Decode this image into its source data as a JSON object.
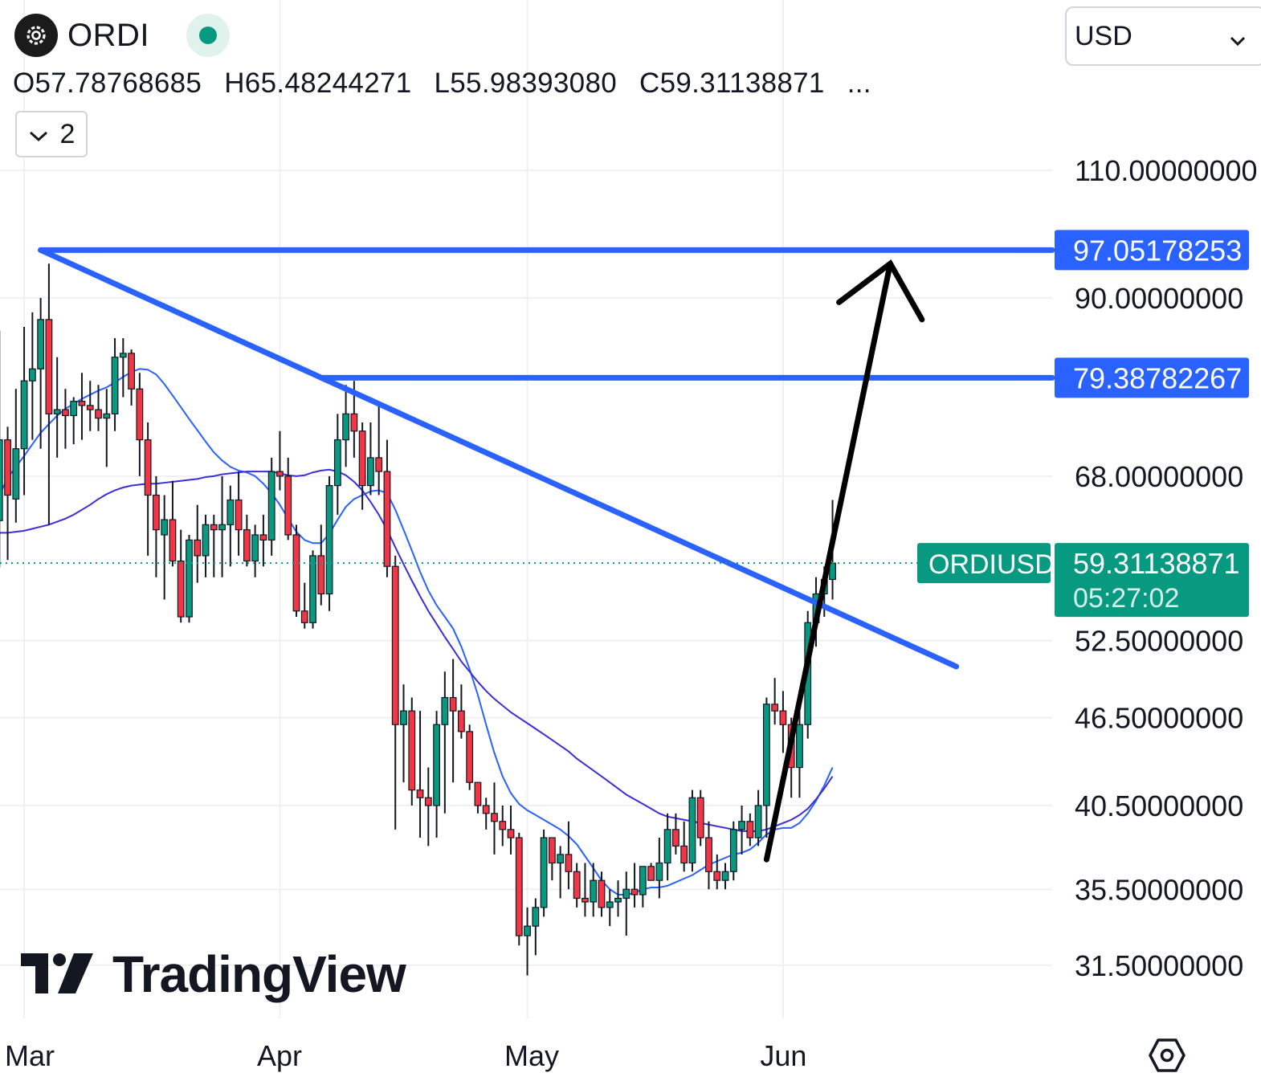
{
  "symbol": {
    "name": "ORDI",
    "logo_icon": "ordi-logo-icon",
    "status_icon": "market-open-dot"
  },
  "ohlc": {
    "open": "O57.78768685",
    "high": "H65.48244271",
    "low": "L55.98393080",
    "close": "C59.31138871",
    "more": "..."
  },
  "indicators_toggle": {
    "label": "2"
  },
  "currency": {
    "selected": "USD"
  },
  "watermark": {
    "text": "TradingView"
  },
  "colors": {
    "up": "#089981",
    "down": "#f23645",
    "trendline": "#2962ff",
    "ma_fast": "#2962ff",
    "ma_slow": "#3a2ed8",
    "price_line": "#089981",
    "arrow": "#000000"
  },
  "chart_data": {
    "type": "candlestick",
    "title": "ORDI",
    "xlabel": "",
    "ylabel": "",
    "y_scale": "log",
    "ylim": [
      30.4,
      119
    ],
    "x_ticks": [
      {
        "label": "Mar",
        "index": 4
      },
      {
        "label": "Apr",
        "index": 35
      },
      {
        "label": "May",
        "index": 65
      },
      {
        "label": "Jun",
        "index": 96
      }
    ],
    "y_ticks": [
      "110.00000000",
      "90.00000000",
      "68.00000000",
      "52.50000000",
      "46.50000000",
      "40.50000000",
      "35.50000000",
      "31.50000000"
    ],
    "candles": [
      [
        62.0,
        70.0,
        57.4,
        63.6
      ],
      [
        63.4,
        85.5,
        58.9,
        72.0
      ],
      [
        72.0,
        73.5,
        59.6,
        66.0
      ],
      [
        65.6,
        78.0,
        63.2,
        71.0
      ],
      [
        71.0,
        86.0,
        66.0,
        79.0
      ],
      [
        79.0,
        88.0,
        72.0,
        80.5
      ],
      [
        80.5,
        90.0,
        71.0,
        87.0
      ],
      [
        87.0,
        95.0,
        63.0,
        75.0
      ],
      [
        75.0,
        82.0,
        70.0,
        75.5
      ],
      [
        75.5,
        78.0,
        71.0,
        74.8
      ],
      [
        74.8,
        77.0,
        71.5,
        76.5
      ],
      [
        76.5,
        80.0,
        72.0,
        76.0
      ],
      [
        76.0,
        79.0,
        73.0,
        75.5
      ],
      [
        75.5,
        78.5,
        73.0,
        74.5
      ],
      [
        74.5,
        78.0,
        69.0,
        75.0
      ],
      [
        75.0,
        84.5,
        73.0,
        82.0
      ],
      [
        82.0,
        84.5,
        77.0,
        82.5
      ],
      [
        82.5,
        83.0,
        76.0,
        78.0
      ],
      [
        78.0,
        80.0,
        68.0,
        72.0
      ],
      [
        72.0,
        74.0,
        60.0,
        66.0
      ],
      [
        66.0,
        68.0,
        58.0,
        62.5
      ],
      [
        62.0,
        66.0,
        56.0,
        63.5
      ],
      [
        63.5,
        67.5,
        59.0,
        59.5
      ],
      [
        59.5,
        62.5,
        54.0,
        54.5
      ],
      [
        54.5,
        62.0,
        54.0,
        61.5
      ],
      [
        61.5,
        65.0,
        57.5,
        60.0
      ],
      [
        60.0,
        64.0,
        58.0,
        63.0
      ],
      [
        63.0,
        64.0,
        58.0,
        62.5
      ],
      [
        62.5,
        68.0,
        58.0,
        63.0
      ],
      [
        63.0,
        67.0,
        59.0,
        65.5
      ],
      [
        65.5,
        68.5,
        60.0,
        62.5
      ],
      [
        62.5,
        64.0,
        59.0,
        59.5
      ],
      [
        59.5,
        63.0,
        58.0,
        62.0
      ],
      [
        62.0,
        64.0,
        59.0,
        61.5
      ],
      [
        61.5,
        70.0,
        60.0,
        68.5
      ],
      [
        68.5,
        73.0,
        66.5,
        68.0
      ],
      [
        68.0,
        70.0,
        61.5,
        62.0
      ],
      [
        62.0,
        63.0,
        54.5,
        55.0
      ],
      [
        55.0,
        57.5,
        53.5,
        54.0
      ],
      [
        54.0,
        60.5,
        53.5,
        60.0
      ],
      [
        60.0,
        63.0,
        55.5,
        56.5
      ],
      [
        56.5,
        68.0,
        55.0,
        67.0
      ],
      [
        67.0,
        75.0,
        64.0,
        72.0
      ],
      [
        72.0,
        78.5,
        69.0,
        75.0
      ],
      [
        75.0,
        79.0,
        70.0,
        73.0
      ],
      [
        73.0,
        74.0,
        64.5,
        67.0
      ],
      [
        67.0,
        74.0,
        66.0,
        70.0
      ],
      [
        70.0,
        76.5,
        66.0,
        68.5
      ],
      [
        68.5,
        72.0,
        58.0,
        59.0
      ],
      [
        59.0,
        60.0,
        39.0,
        46.0
      ],
      [
        46.0,
        49.0,
        42.0,
        47.0
      ],
      [
        47.0,
        48.0,
        40.5,
        41.5
      ],
      [
        41.5,
        47.0,
        38.5,
        41.0
      ],
      [
        41.0,
        43.0,
        38.0,
        40.5
      ],
      [
        40.5,
        47.0,
        38.5,
        46.0
      ],
      [
        46.0,
        50.0,
        40.0,
        48.0
      ],
      [
        48.0,
        51.0,
        42.0,
        47.0
      ],
      [
        47.0,
        49.0,
        45.0,
        45.5
      ],
      [
        45.5,
        46.0,
        41.5,
        42.0
      ],
      [
        42.0,
        42.0,
        40.0,
        40.5
      ],
      [
        40.5,
        41.0,
        39.0,
        40.0
      ],
      [
        40.0,
        42.0,
        37.5,
        39.5
      ],
      [
        39.5,
        40.5,
        38.0,
        39.0
      ],
      [
        39.0,
        40.5,
        37.5,
        38.5
      ],
      [
        38.5,
        38.8,
        32.5,
        33.0
      ],
      [
        33.0,
        34.5,
        31.0,
        33.5
      ],
      [
        33.5,
        35.0,
        32.0,
        34.5
      ],
      [
        34.5,
        39.0,
        34.0,
        38.5
      ],
      [
        38.5,
        38.5,
        36.0,
        37.0
      ],
      [
        37.0,
        38.0,
        35.0,
        37.5
      ],
      [
        37.5,
        39.5,
        35.5,
        36.5
      ],
      [
        36.5,
        37.0,
        34.5,
        35.0
      ],
      [
        35.0,
        37.0,
        34.0,
        34.8
      ],
      [
        34.8,
        37.0,
        34.0,
        36.0
      ],
      [
        36.0,
        36.5,
        34.0,
        34.5
      ],
      [
        34.5,
        35.5,
        33.5,
        34.8
      ],
      [
        34.8,
        36.0,
        34.0,
        35.0
      ],
      [
        35.0,
        36.5,
        33.0,
        35.5
      ],
      [
        35.5,
        37.0,
        34.5,
        35.2
      ],
      [
        35.2,
        36.8,
        34.5,
        36.8
      ],
      [
        36.8,
        37.0,
        36.0,
        36.0
      ],
      [
        36.0,
        38.5,
        35.0,
        37.0
      ],
      [
        37.0,
        40.0,
        36.0,
        39.0
      ],
      [
        39.0,
        40.0,
        37.5,
        38.0
      ],
      [
        38.0,
        39.5,
        36.5,
        37.0
      ],
      [
        37.0,
        41.5,
        36.5,
        41.0
      ],
      [
        41.0,
        41.5,
        38.0,
        38.5
      ],
      [
        38.5,
        39.5,
        35.5,
        36.5
      ],
      [
        36.5,
        37.5,
        35.5,
        36.0
      ],
      [
        36.0,
        37.0,
        35.5,
        36.5
      ],
      [
        36.5,
        39.5,
        36.0,
        39.0
      ],
      [
        39.0,
        40.5,
        37.5,
        39.5
      ],
      [
        39.5,
        40.0,
        38.0,
        38.5
      ],
      [
        38.5,
        41.5,
        38.0,
        40.5
      ],
      [
        40.5,
        48.0,
        38.5,
        47.5
      ],
      [
        47.5,
        49.5,
        46.0,
        47.0
      ],
      [
        47.0,
        48.5,
        44.0,
        46.0
      ],
      [
        46.0,
        46.5,
        41.0,
        43.0
      ],
      [
        43.0,
        47.0,
        41.0,
        46.0
      ],
      [
        46.0,
        55.0,
        45.0,
        54.0
      ],
      [
        54.0,
        58.0,
        52.0,
        56.5
      ],
      [
        56.5,
        59.0,
        54.5,
        57.8
      ],
      [
        57.8,
        65.5,
        56.0,
        59.3
      ]
    ],
    "series": [
      {
        "values": [
          64.5,
          66.0,
          67.8,
          69.0,
          70.2,
          71.5,
          72.8,
          73.8,
          74.8,
          75.6,
          76.2,
          76.8,
          77.3,
          77.8,
          78.2,
          78.8,
          79.5,
          80.1,
          80.5,
          80.4,
          79.8,
          78.6,
          77.2,
          75.8,
          74.4,
          73.1,
          71.8,
          70.6,
          69.7,
          69.0,
          68.6,
          68.4,
          68.0,
          67.2,
          66.2,
          65.0,
          63.6,
          62.3,
          61.5,
          61.2,
          61.2,
          62.1,
          63.5,
          64.8,
          65.6,
          66.0,
          66.4,
          66.5,
          66.2,
          64.5,
          62.5,
          60.5,
          58.5,
          56.8,
          55.5,
          54.5,
          53.5,
          52.0,
          50.2,
          48.2,
          46.0,
          44.0,
          42.4,
          41.3,
          40.6,
          40.2,
          39.9,
          39.6,
          39.3,
          39.0,
          38.6,
          38.1,
          37.4,
          36.7,
          36.0,
          35.5,
          35.2,
          35.2,
          35.3,
          35.5,
          35.6,
          35.6,
          35.7,
          35.9,
          36.1,
          36.3,
          36.6,
          36.9,
          37.1,
          37.3,
          37.5,
          37.6,
          37.8,
          38.2,
          38.7,
          39.0,
          39.1,
          39.1,
          39.4,
          40.0,
          40.8,
          41.8,
          43.0
        ]
      },
      {
        "values": [
          62.2,
          62.2,
          62.2,
          62.3,
          62.4,
          62.6,
          62.8,
          63.0,
          63.3,
          63.6,
          64.0,
          64.5,
          65.0,
          65.6,
          66.1,
          66.5,
          66.8,
          67.0,
          67.1,
          67.2,
          67.2,
          67.3,
          67.4,
          67.5,
          67.6,
          67.7,
          67.9,
          68.0,
          68.2,
          68.3,
          68.4,
          68.5,
          68.5,
          68.5,
          68.5,
          68.3,
          68.1,
          68.0,
          68.1,
          68.4,
          68.6,
          68.7,
          68.5,
          68.1,
          67.4,
          66.5,
          65.3,
          64.0,
          62.5,
          60.8,
          59.2,
          57.7,
          56.3,
          55.0,
          53.9,
          52.8,
          51.8,
          50.8,
          50.0,
          49.2,
          48.5,
          47.9,
          47.4,
          46.9,
          46.5,
          46.1,
          45.7,
          45.3,
          44.9,
          44.5,
          44.1,
          43.6,
          43.2,
          42.8,
          42.4,
          42.0,
          41.6,
          41.2,
          40.9,
          40.6,
          40.3,
          40.0,
          39.8,
          39.7,
          39.6,
          39.5,
          39.4,
          39.3,
          39.2,
          39.1,
          39.0,
          38.9,
          38.9,
          38.9,
          39.0,
          39.2,
          39.4,
          39.6,
          39.9,
          40.3,
          40.9,
          41.6,
          42.4
        ]
      }
    ],
    "horizontal_lines": [
      {
        "value": 97.05178253,
        "label": "97.05178253",
        "start_index": 6
      },
      {
        "value": 79.38782267,
        "label": "79.38782267",
        "start_index": 40
      }
    ],
    "trendline": {
      "from": [
        6,
        97.05
      ],
      "to": [
        117,
        50.4
      ]
    },
    "arrow": {
      "from": [
        94,
        37.2
      ],
      "to": [
        109,
        95.0
      ]
    },
    "current_price": {
      "symbol": "ORDIUSD",
      "label": "59.31138871",
      "countdown": "05:27:02",
      "value": 59.31138871
    }
  }
}
